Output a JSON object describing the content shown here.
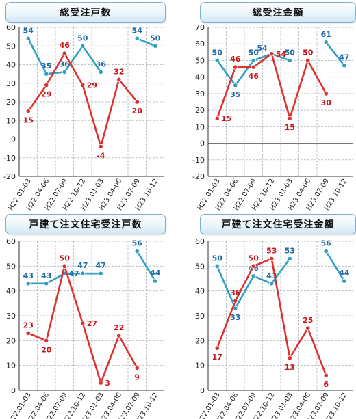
{
  "colors": {
    "series_a": "#2f9fc2",
    "series_b": "#df2f2f",
    "label_a": "#1e6aa6",
    "label_b": "#c8141a",
    "grid": "#b8c0c8",
    "axis": "#333333",
    "zero_line": "#777777"
  },
  "chart_data": [
    {
      "type": "line",
      "title": "総受注戸数",
      "categories": [
        "H22.01-03",
        "H22.04-06",
        "H22.07-09",
        "H22.10-12",
        "H23.01-03",
        "H23.04-06",
        "H23.07-09",
        "H23.10-12"
      ],
      "ylim": [
        -20,
        60
      ],
      "yticks": [
        -20,
        -10,
        0,
        10,
        20,
        30,
        40,
        50,
        60
      ],
      "grid": true,
      "series": [
        {
          "values": [
            54,
            35,
            36,
            50,
            36,
            null,
            54,
            50
          ],
          "label_pos": [
            "above",
            "above",
            "above",
            "above",
            "above",
            null,
            "above",
            "above"
          ]
        },
        {
          "values": [
            15,
            29,
            46,
            29,
            -4,
            32,
            20,
            null
          ],
          "label_pos": [
            "below",
            "below",
            "above",
            "right",
            "below",
            "above",
            "below",
            null
          ]
        }
      ]
    },
    {
      "type": "line",
      "title": "総受注金額",
      "categories": [
        "H22.01-03",
        "H22.04-06",
        "H22.07-09",
        "H22.10-12",
        "H23.01-03",
        "H23.04-06",
        "H23.07-09",
        "H23.10-12"
      ],
      "ylim": [
        -20,
        70
      ],
      "yticks": [
        -20,
        -10,
        0,
        10,
        20,
        30,
        40,
        50,
        60,
        70
      ],
      "grid": true,
      "series": [
        {
          "values": [
            50,
            35,
            50,
            54,
            50,
            null,
            61,
            47
          ],
          "label_pos": [
            "above",
            "below",
            "above",
            "left",
            "above",
            null,
            "above",
            "above"
          ]
        },
        {
          "values": [
            15,
            46,
            46,
            54,
            15,
            50,
            30,
            null
          ],
          "label_pos": [
            "right",
            "above",
            "below",
            "right",
            "below",
            "above",
            "below",
            null
          ]
        }
      ]
    },
    {
      "type": "line",
      "title": "戸建て注文住宅受注戸数",
      "categories": [
        "H22.01-03",
        "H22.04-06",
        "H22.07-09",
        "H22.10-12",
        "H23.01-03",
        "H23.04-06",
        "H23.07-09",
        "H23.10-12"
      ],
      "ylim": [
        0,
        60
      ],
      "yticks": [
        0,
        10,
        20,
        30,
        40,
        50,
        60
      ],
      "grid": true,
      "series": [
        {
          "values": [
            43,
            43,
            47,
            47,
            47,
            null,
            56,
            44
          ],
          "label_pos": [
            "above",
            "above",
            "right",
            "above",
            "above",
            null,
            "above",
            "above"
          ]
        },
        {
          "values": [
            23,
            20,
            50,
            27,
            3,
            22,
            9,
            null
          ],
          "label_pos": [
            "above",
            "below",
            "above",
            "right",
            "right",
            "above",
            "below",
            null
          ]
        }
      ]
    },
    {
      "type": "line",
      "title": "戸建て注文住宅受注金額",
      "categories": [
        "H22.01-03",
        "H22.04-06",
        "H22.07-09",
        "H22.10-12",
        "H23.01-03",
        "H23.04-06",
        "H23.07-09",
        "H23.10-12"
      ],
      "ylim": [
        0,
        60
      ],
      "yticks": [
        0,
        10,
        20,
        30,
        40,
        50,
        60
      ],
      "grid": true,
      "series": [
        {
          "values": [
            50,
            33,
            46,
            43,
            53,
            null,
            56,
            44
          ],
          "label_pos": [
            "above",
            "below",
            "above",
            "above",
            "above",
            null,
            "above",
            "above"
          ]
        },
        {
          "values": [
            17,
            36,
            50,
            53,
            13,
            25,
            6,
            null
          ],
          "label_pos": [
            "below",
            "above",
            "above",
            "above",
            "below",
            "above",
            "below",
            null
          ]
        }
      ]
    }
  ]
}
